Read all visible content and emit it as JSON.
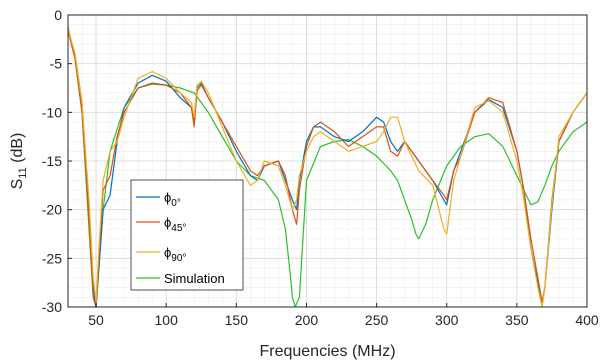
{
  "chart_data": {
    "type": "line",
    "xlabel": "Frequencies (MHz)",
    "ylabel": {
      "base": "S",
      "sub": "11",
      "suffix": " (dB)"
    },
    "xlim": [
      30,
      400
    ],
    "ylim": [
      -30,
      0
    ],
    "xticks": [
      50,
      100,
      150,
      200,
      250,
      300,
      350,
      400
    ],
    "yticks": [
      0,
      -5,
      -10,
      -15,
      -20,
      -25,
      -30
    ],
    "grid": "major and minor",
    "legend_position": "lower-left",
    "series": [
      {
        "name": "ϕ",
        "sub": "0°",
        "color": "#0072BD",
        "x": [
          30,
          35,
          40,
          45,
          48,
          50,
          52,
          55,
          60,
          65,
          70,
          80,
          90,
          100,
          110,
          118,
          120,
          122,
          125,
          130,
          140,
          150,
          160,
          165,
          170,
          180,
          185,
          190,
          193,
          195,
          200,
          205,
          210,
          220,
          230,
          240,
          250,
          255,
          260,
          265,
          270,
          280,
          290,
          298,
          300,
          305,
          310,
          320,
          330,
          340,
          350,
          355,
          360,
          365,
          368,
          370,
          375,
          380,
          390,
          400
        ],
        "y": [
          -1.5,
          -4,
          -9,
          -20,
          -28,
          -30,
          -26,
          -20,
          -18.5,
          -13,
          -9.5,
          -7,
          -6.2,
          -6.8,
          -8.5,
          -9.5,
          -11,
          -7.5,
          -7,
          -8.5,
          -11,
          -14,
          -16.5,
          -17,
          -15.5,
          -15,
          -17,
          -19,
          -20,
          -17,
          -13,
          -11.5,
          -11.5,
          -12.5,
          -13,
          -12,
          -10.5,
          -11,
          -13,
          -14,
          -13,
          -15,
          -17,
          -19,
          -19.5,
          -16,
          -14,
          -10,
          -8.7,
          -9.5,
          -14,
          -18,
          -24,
          -27.5,
          -29.5,
          -28,
          -20,
          -13,
          -10,
          -8
        ]
      },
      {
        "name": "ϕ",
        "sub": "45°",
        "color": "#D95319",
        "x": [
          30,
          35,
          40,
          45,
          48,
          50,
          52,
          55,
          60,
          65,
          70,
          80,
          90,
          100,
          110,
          118,
          120,
          122,
          125,
          130,
          140,
          150,
          160,
          165,
          170,
          180,
          185,
          190,
          193,
          195,
          200,
          205,
          210,
          220,
          230,
          240,
          250,
          255,
          260,
          265,
          270,
          280,
          290,
          298,
          300,
          305,
          310,
          320,
          330,
          340,
          350,
          355,
          360,
          365,
          368,
          370,
          375,
          380,
          390,
          400
        ],
        "y": [
          -1.6,
          -4.5,
          -10,
          -21,
          -29,
          -30,
          -25,
          -18,
          -16.5,
          -12.5,
          -10,
          -7.5,
          -7,
          -7.2,
          -8,
          -9.5,
          -11.5,
          -7.8,
          -7.2,
          -8.5,
          -11,
          -13.5,
          -16,
          -16.5,
          -15.5,
          -15,
          -16.5,
          -20,
          -21.5,
          -18,
          -13.5,
          -11.5,
          -11,
          -12,
          -13.5,
          -12.5,
          -11.5,
          -11.5,
          -14,
          -14.5,
          -13,
          -15,
          -17,
          -18.5,
          -19,
          -16,
          -14.5,
          -10,
          -8.5,
          -9,
          -14,
          -18,
          -23,
          -27,
          -29.5,
          -28,
          -19,
          -13,
          -10,
          -8
        ]
      },
      {
        "name": "ϕ",
        "sub": "90°",
        "color": "#EDB120",
        "x": [
          30,
          35,
          40,
          45,
          48,
          50,
          52,
          55,
          60,
          65,
          70,
          80,
          90,
          100,
          110,
          118,
          120,
          122,
          125,
          130,
          140,
          150,
          160,
          165,
          170,
          180,
          185,
          190,
          193,
          195,
          200,
          205,
          210,
          220,
          230,
          240,
          250,
          255,
          260,
          265,
          270,
          280,
          290,
          298,
          300,
          305,
          310,
          320,
          330,
          340,
          350,
          355,
          360,
          365,
          368,
          370,
          375,
          380,
          390,
          400
        ],
        "y": [
          -1.4,
          -4,
          -9,
          -19,
          -27,
          -29.5,
          -24,
          -17,
          -14,
          -13,
          -10.5,
          -6.5,
          -5.8,
          -6.5,
          -8,
          -9,
          -10.5,
          -7.2,
          -6.8,
          -8,
          -11.5,
          -15,
          -17.5,
          -17,
          -15,
          -15.5,
          -17.5,
          -20,
          -19,
          -16.5,
          -14,
          -12.5,
          -12,
          -13,
          -14,
          -13.5,
          -13,
          -12,
          -10.5,
          -10.5,
          -13,
          -16,
          -17.5,
          -22,
          -22.5,
          -17,
          -14.5,
          -9.5,
          -8.8,
          -10,
          -15,
          -19,
          -24,
          -28,
          -30,
          -28,
          -19.5,
          -12.5,
          -10,
          -8
        ]
      },
      {
        "name": "Simulation",
        "sub": "",
        "color": "#2EBE2E",
        "x": [
          30,
          35,
          40,
          45,
          48,
          50,
          52,
          55,
          60,
          70,
          80,
          90,
          100,
          110,
          120,
          130,
          140,
          150,
          160,
          170,
          180,
          185,
          188,
          190,
          192,
          195,
          200,
          210,
          220,
          230,
          240,
          250,
          260,
          265,
          270,
          275,
          278,
          280,
          285,
          290,
          300,
          310,
          320,
          330,
          340,
          350,
          355,
          360,
          365,
          370,
          375,
          380,
          390,
          400
        ],
        "y": [
          -1.2,
          -4.5,
          -10,
          -22,
          -29,
          -30,
          -26,
          -20,
          -14,
          -9.5,
          -7.5,
          -7.1,
          -7.2,
          -7.5,
          -8,
          -10,
          -12.5,
          -15,
          -16.5,
          -17,
          -19,
          -22,
          -26,
          -29,
          -30,
          -29,
          -17,
          -13.5,
          -13,
          -12.8,
          -13.5,
          -14.5,
          -16,
          -17,
          -19,
          -21,
          -22.5,
          -23,
          -21.5,
          -19,
          -15.5,
          -13.5,
          -12.5,
          -12.2,
          -13.5,
          -16.5,
          -18,
          -19.5,
          -19.2,
          -17.5,
          -15.5,
          -14,
          -12,
          -11
        ]
      }
    ]
  }
}
